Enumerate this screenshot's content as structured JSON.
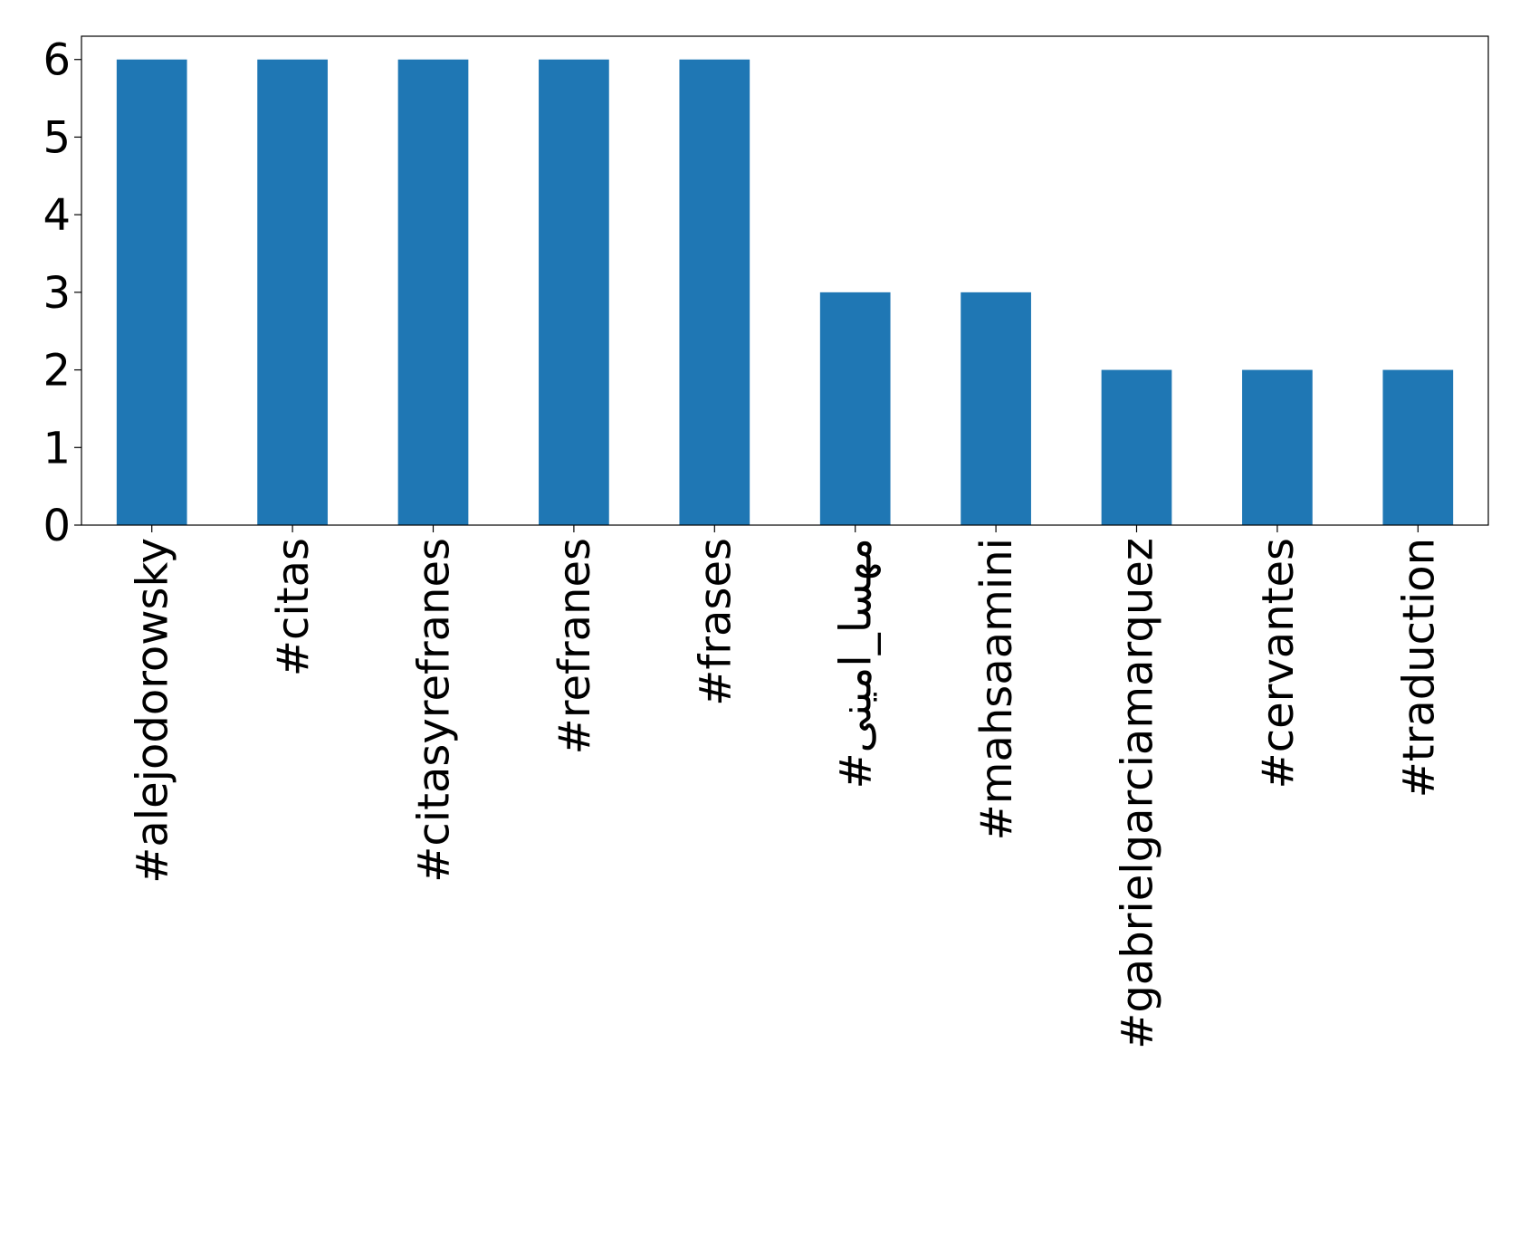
{
  "chart_data": {
    "type": "bar",
    "categories": [
      "#alejodorowsky",
      "#citas",
      "#citasyrefranes",
      "#refranes",
      "#frases",
      "#مهسا_امینی",
      "#mahsaamini",
      "#gabrielgarciamarquez",
      "#cervantes",
      "#traduction"
    ],
    "values": [
      6,
      6,
      6,
      6,
      6,
      3,
      3,
      2,
      2,
      2
    ],
    "color": "#1f77b4",
    "ylim": [
      0,
      6.3
    ],
    "yticks": [
      0,
      1,
      2,
      3,
      4,
      5,
      6
    ],
    "grid": false
  }
}
